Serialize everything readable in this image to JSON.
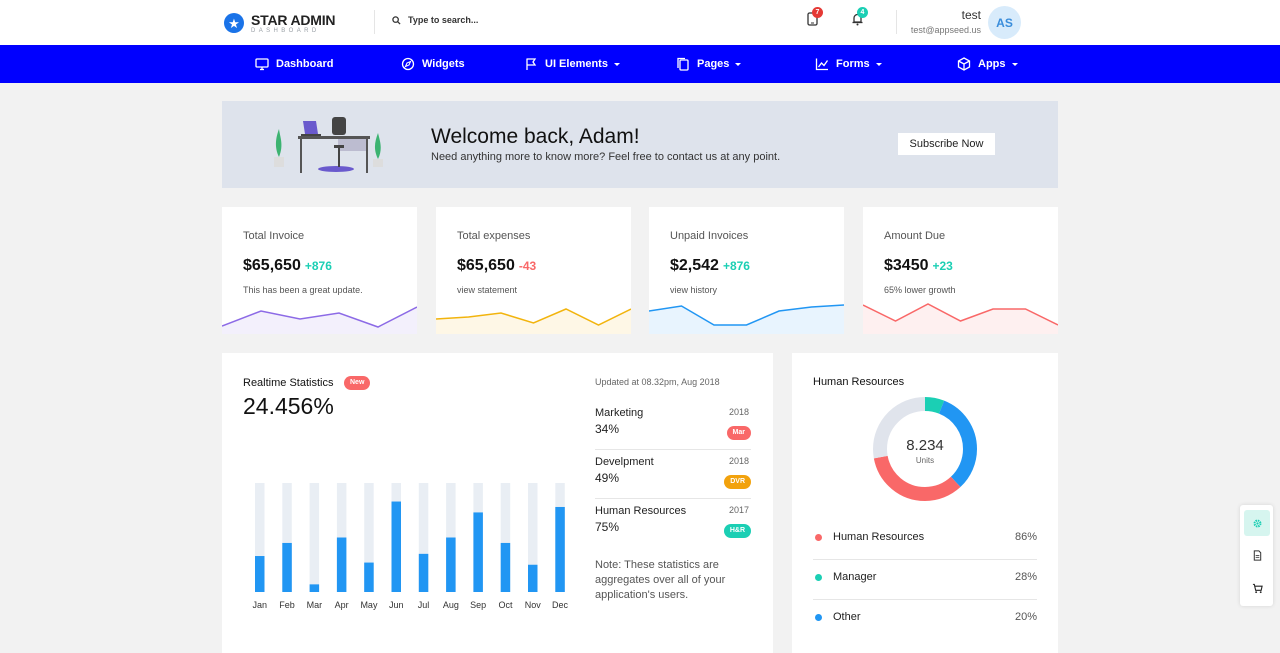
{
  "brand": {
    "name": "STAR ADMIN",
    "sub": "DASHBOARD",
    "logo_icon": "star-icon"
  },
  "search": {
    "placeholder": "Type to search..."
  },
  "notifications": {
    "messages_count": "7",
    "alerts_count": "4"
  },
  "user": {
    "name": "test",
    "email": "test@appseed.us",
    "initials": "AS"
  },
  "nav": [
    {
      "label": "Dashboard",
      "icon": "monitor-icon"
    },
    {
      "label": "Widgets",
      "icon": "compass-icon"
    },
    {
      "label": "UI Elements",
      "icon": "flag-icon"
    },
    {
      "label": "Pages",
      "icon": "copy-icon"
    },
    {
      "label": "Forms",
      "icon": "chart-line-icon"
    },
    {
      "label": "Apps",
      "icon": "cube-icon"
    }
  ],
  "welcome": {
    "title": "Welcome back, Adam!",
    "subtitle": "Need anything more to know more? Feel free to contact us at any point.",
    "button": "Subscribe Now"
  },
  "stats": [
    {
      "label": "Total Invoice",
      "value": "$65,650",
      "change": "+876",
      "note": "This has been a great update.",
      "color": "#8c6ae6",
      "spark": [
        5,
        20,
        12,
        18,
        4,
        24
      ]
    },
    {
      "label": "Total expenses",
      "value": "$65,650",
      "change": "-43",
      "note": "view statement",
      "color": "#f2b40d",
      "spark": [
        12,
        14,
        18,
        8,
        22,
        6,
        22
      ]
    },
    {
      "label": "Unpaid Invoices",
      "value": "$2,542",
      "change": "+876",
      "note": "view history",
      "color": "#2196f3",
      "spark": [
        20,
        25,
        6,
        6,
        20,
        24,
        26
      ]
    },
    {
      "label": "Amount Due",
      "value": "$3450",
      "change": "+23",
      "note": "65% lower growth",
      "color": "#f96868",
      "spark": [
        26,
        10,
        27,
        10,
        22,
        22,
        6
      ]
    }
  ],
  "realtime": {
    "title": "Realtime Statistics",
    "badge": "New",
    "value": "24.456%",
    "updated": "Updated at 08.32pm, Aug 2018",
    "rows": [
      {
        "name": "Marketing",
        "year": "2018",
        "pct": "34%",
        "tag": "Mar",
        "color": "#f96868"
      },
      {
        "name": "Develpment",
        "year": "2018",
        "pct": "49%",
        "tag": "DVR",
        "color": "#f2a20d"
      },
      {
        "name": "Human Resources",
        "year": "2017",
        "pct": "75%",
        "tag": "H&R",
        "color": "#1bcfb4"
      }
    ],
    "note": "Note: These statistics are aggregates over all of your application's users."
  },
  "chart_data": {
    "type": "bar",
    "categories": [
      "Jan",
      "Feb",
      "Mar",
      "Apr",
      "May",
      "Jun",
      "Jul",
      "Aug",
      "Sep",
      "Oct",
      "Nov",
      "Dec"
    ],
    "values": [
      33,
      45,
      7,
      50,
      27,
      83,
      35,
      50,
      73,
      45,
      25,
      78
    ],
    "ylim": [
      0,
      100
    ],
    "colors": {
      "bar": "#2196f3",
      "track": "#e9eef4"
    }
  },
  "hr": {
    "title": "Human Resources",
    "center_value": "8.234",
    "center_unit": "Units",
    "legend": [
      {
        "label": "Human Resources",
        "value": "86%",
        "color": "#f96868"
      },
      {
        "label": "Manager",
        "value": "28%",
        "color": "#1bcfb4"
      },
      {
        "label": "Other",
        "value": "20%",
        "color": "#2196f3"
      }
    ],
    "donut_segments": [
      {
        "label": "Other",
        "fraction": 0.06,
        "color": "#1bcfb4"
      },
      {
        "label": "Human Resources",
        "fraction": 0.32,
        "color": "#2196f3"
      },
      {
        "label": "Manager",
        "fraction": 0.34,
        "color": "#f96868"
      },
      {
        "label": "Remaining",
        "fraction": 0.28,
        "color": "#e0e4ec"
      }
    ]
  },
  "tools": [
    {
      "icon": "gear-icon"
    },
    {
      "icon": "document-icon"
    },
    {
      "icon": "cart-icon"
    }
  ]
}
